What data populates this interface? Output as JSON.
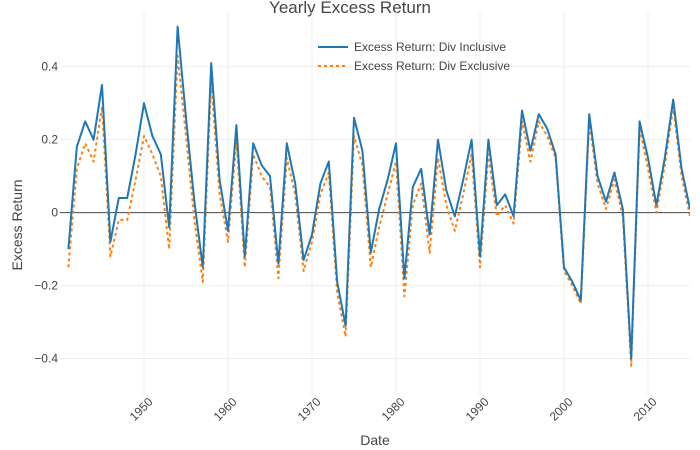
{
  "chart_data": {
    "type": "line",
    "title": "Yearly Excess Return",
    "xlabel": "Date",
    "ylabel": "Excess Return",
    "xlim": [
      1940,
      2015
    ],
    "ylim": [
      -0.5,
      0.55
    ],
    "x_ticks": [
      1950,
      1960,
      1970,
      1980,
      1990,
      2000,
      2010
    ],
    "y_ticks": [
      -0.4,
      -0.2,
      0,
      0.2,
      0.4
    ],
    "y_tick_labels": [
      "−0.4",
      "−0.2",
      "0",
      "0.2",
      "0.4"
    ],
    "grid": true,
    "zero_line": true,
    "legend_position": "top-right",
    "x": [
      1941,
      1942,
      1943,
      1944,
      1945,
      1946,
      1947,
      1948,
      1949,
      1950,
      1951,
      1952,
      1953,
      1954,
      1955,
      1956,
      1957,
      1958,
      1959,
      1960,
      1961,
      1962,
      1963,
      1964,
      1965,
      1966,
      1967,
      1968,
      1969,
      1970,
      1971,
      1972,
      1973,
      1974,
      1975,
      1976,
      1977,
      1978,
      1979,
      1980,
      1981,
      1982,
      1983,
      1984,
      1985,
      1986,
      1987,
      1988,
      1989,
      1990,
      1991,
      1992,
      1993,
      1994,
      1995,
      1996,
      1997,
      1998,
      1999,
      2000,
      2001,
      2002,
      2003,
      2004,
      2005,
      2006,
      2007,
      2008,
      2009,
      2010,
      2011,
      2012,
      2013,
      2014,
      2015
    ],
    "series": [
      {
        "name": "Excess Return: Div Inclusive",
        "color": "#1f77b4",
        "dash": "solid",
        "values": [
          -0.1,
          0.18,
          0.25,
          0.2,
          0.35,
          -0.08,
          0.04,
          0.04,
          0.16,
          0.3,
          0.21,
          0.16,
          -0.04,
          0.51,
          0.26,
          0.03,
          -0.15,
          0.41,
          0.09,
          -0.05,
          0.24,
          -0.12,
          0.19,
          0.13,
          0.1,
          -0.14,
          0.19,
          0.08,
          -0.13,
          -0.06,
          0.08,
          0.14,
          -0.19,
          -0.31,
          0.26,
          0.17,
          -0.11,
          0.01,
          0.09,
          0.19,
          -0.18,
          0.07,
          0.12,
          -0.06,
          0.2,
          0.06,
          -0.01,
          0.09,
          0.2,
          -0.12,
          0.2,
          0.02,
          0.05,
          -0.01,
          0.28,
          0.17,
          0.27,
          0.23,
          0.16,
          -0.15,
          -0.19,
          -0.24,
          0.27,
          0.1,
          0.03,
          0.11,
          0.01,
          -0.4,
          0.25,
          0.15,
          0.02,
          0.15,
          0.31,
          0.12,
          0.01
        ]
      },
      {
        "name": "Excess Return: Div Exclusive",
        "color": "#ff7f0e",
        "dash": "dotted",
        "values": [
          -0.15,
          0.12,
          0.19,
          0.14,
          0.29,
          -0.12,
          -0.02,
          -0.02,
          0.09,
          0.21,
          0.16,
          0.1,
          -0.1,
          0.43,
          0.21,
          -0.02,
          -0.19,
          0.36,
          0.05,
          -0.08,
          0.2,
          -0.15,
          0.16,
          0.1,
          0.07,
          -0.18,
          0.15,
          0.05,
          -0.16,
          -0.08,
          0.05,
          0.11,
          -0.22,
          -0.34,
          0.21,
          0.13,
          -0.15,
          -0.04,
          0.05,
          0.14,
          -0.23,
          0.02,
          0.08,
          -0.11,
          0.15,
          0.02,
          -0.05,
          0.05,
          0.16,
          -0.15,
          0.16,
          -0.01,
          0.02,
          -0.03,
          0.25,
          0.14,
          0.25,
          0.21,
          0.15,
          -0.16,
          -0.2,
          -0.25,
          0.25,
          0.08,
          0.01,
          0.09,
          -0.01,
          -0.42,
          0.23,
          0.12,
          0.0,
          0.13,
          0.29,
          0.1,
          -0.01
        ]
      }
    ]
  }
}
